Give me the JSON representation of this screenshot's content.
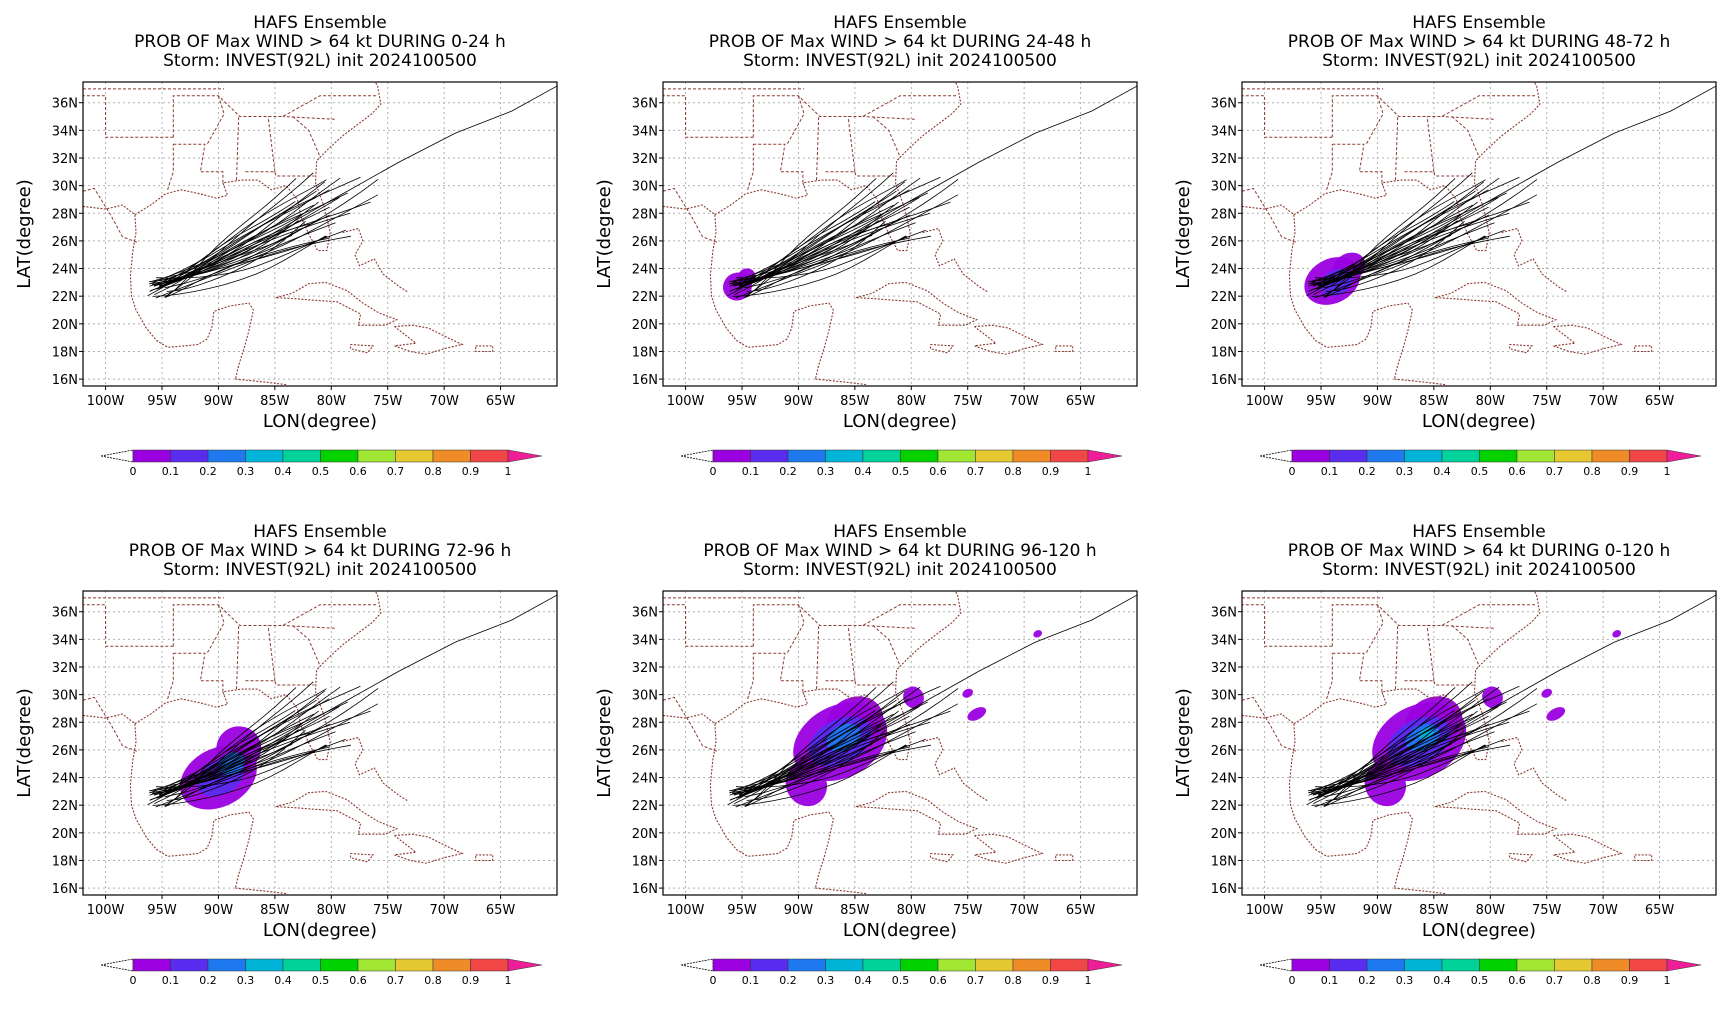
{
  "panels": [
    {
      "title": "HAFS Ensemble",
      "subtitle": "PROB OF Max WIND > 64 kt DURING  0-24 h",
      "storm": "Storm: INVEST(92L) init 2024100500",
      "prob_level": 0
    },
    {
      "title": "HAFS Ensemble",
      "subtitle": "PROB OF Max WIND > 64 kt DURING 24-48 h",
      "storm": "Storm: INVEST(92L) init 2024100500",
      "prob_level": 1
    },
    {
      "title": "HAFS Ensemble",
      "subtitle": "PROB OF Max WIND > 64 kt DURING 48-72 h",
      "storm": "Storm: INVEST(92L) init 2024100500",
      "prob_level": 2
    },
    {
      "title": "HAFS Ensemble",
      "subtitle": "PROB OF Max WIND > 64 kt DURING 72-96 h",
      "storm": "Storm: INVEST(92L) init 2024100500",
      "prob_level": 3
    },
    {
      "title": "HAFS Ensemble",
      "subtitle": "PROB OF Max WIND > 64 kt DURING 96-120 h",
      "storm": "Storm: INVEST(92L) init 2024100500",
      "prob_level": 4
    },
    {
      "title": "HAFS Ensemble",
      "subtitle": "PROB OF Max WIND > 64 kt DURING 0-120 h",
      "storm": "Storm: INVEST(92L) init 2024100500",
      "prob_level": 5
    }
  ],
  "axes": {
    "xlabel": "LON(degree)",
    "ylabel": "LAT(degree)",
    "x_ticks": [
      "100W",
      "95W",
      "90W",
      "85W",
      "80W",
      "75W",
      "70W",
      "65W"
    ],
    "y_ticks": [
      "16N",
      "18N",
      "20N",
      "22N",
      "24N",
      "26N",
      "28N",
      "30N",
      "32N",
      "34N",
      "36N"
    ],
    "lon_range": [
      -102,
      -60
    ],
    "lat_range": [
      15.5,
      37.5
    ]
  },
  "colorbar": {
    "labels": [
      "0",
      "0.1",
      "0.2",
      "0.3",
      "0.4",
      "0.5",
      "0.6",
      "0.7",
      "0.8",
      "0.9",
      "1"
    ],
    "colors": [
      "#9b00e0",
      "#5a2cf0",
      "#1e78f0",
      "#00b4d8",
      "#00d29a",
      "#00d200",
      "#a0e632",
      "#e6c832",
      "#f08c28",
      "#f04646",
      "#f01e96"
    ]
  },
  "colors": {
    "coast": "#8b3a2f",
    "tracks": "#000000",
    "grid": "#b0b0b0"
  }
}
